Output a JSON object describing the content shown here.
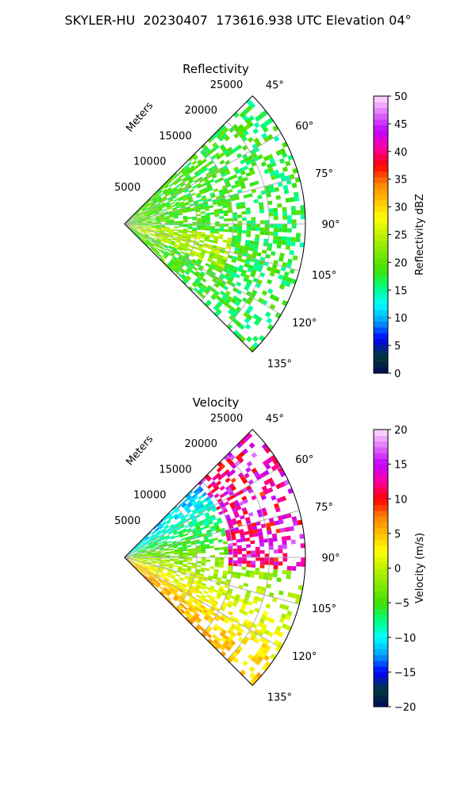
{
  "figure": {
    "suptitle": "SKYLER-HU  20230407  173616.938 UTC Elevation 04°"
  },
  "chart_data": [
    {
      "type": "heatmap",
      "title": "Reflectivity",
      "projection": "polar-sector",
      "range_label": "Meters",
      "range_ticks": [
        5000,
        10000,
        15000,
        20000,
        25000
      ],
      "range_max": 25000,
      "azimuth_range": [
        45,
        135
      ],
      "azimuth_ticks": [
        "45°",
        "60°",
        "75°",
        "90°",
        "105°",
        "120°",
        "135°"
      ],
      "colorbar": {
        "label": "Reflectivity dBZ",
        "min": 0,
        "max": 50,
        "ticks": [
          0,
          5,
          10,
          15,
          20,
          25,
          30,
          35,
          40,
          45,
          50
        ],
        "stops": [
          "#000a5a",
          "#003a3a",
          "#0000ff",
          "#00a0ff",
          "#00ffff",
          "#00ff80",
          "#40e000",
          "#80e800",
          "#c0f000",
          "#ffff00",
          "#ffc000",
          "#ff8000",
          "#ff0000",
          "#ff00a0",
          "#c000ff",
          "#e070ff",
          "#ffe0ff"
        ]
      }
    },
    {
      "type": "heatmap",
      "title": "Velocity",
      "projection": "polar-sector",
      "range_label": "Meters",
      "range_ticks": [
        5000,
        10000,
        15000,
        20000,
        25000
      ],
      "range_max": 25000,
      "azimuth_range": [
        45,
        135
      ],
      "azimuth_ticks": [
        "45°",
        "60°",
        "75°",
        "90°",
        "105°",
        "120°",
        "135°"
      ],
      "colorbar": {
        "label": "Velocity (m/s)",
        "min": -20,
        "max": 20,
        "ticks": [
          -20,
          -15,
          -10,
          -5,
          0,
          5,
          10,
          15,
          20
        ],
        "stops": [
          "#000a5a",
          "#003a3a",
          "#0000ff",
          "#00a0ff",
          "#00ffff",
          "#00ff80",
          "#40e000",
          "#80e800",
          "#c0f000",
          "#ffff00",
          "#ffc000",
          "#ff8000",
          "#ff0000",
          "#ff00a0",
          "#c000ff",
          "#e070ff",
          "#ffe0ff"
        ]
      }
    }
  ]
}
